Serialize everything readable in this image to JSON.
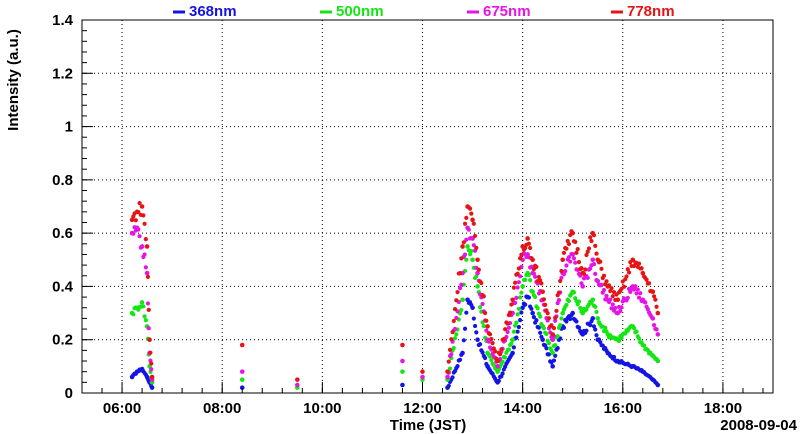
{
  "chart_data": {
    "type": "scatter",
    "title": "",
    "xlabel": "Time (JST)",
    "ylabel": "Intensity (a.u.)",
    "date_label": "2008-09-04",
    "x_unit": "hours (JST)",
    "xlim": [
      5.2,
      19.0
    ],
    "ylim": [
      0,
      1.4
    ],
    "x_ticks": [
      6,
      8,
      10,
      12,
      14,
      16,
      18
    ],
    "x_tick_labels": [
      "06:00",
      "08:00",
      "10:00",
      "12:00",
      "14:00",
      "16:00",
      "18:00"
    ],
    "y_ticks": [
      0,
      0.2,
      0.4,
      0.6,
      0.8,
      1,
      1.2,
      1.4
    ],
    "y_tick_labels": [
      "0",
      "0.2",
      "0.4",
      "0.6",
      "0.8",
      "1",
      "1.2",
      "1.4"
    ],
    "grid": true,
    "legend_position": "top",
    "series": [
      {
        "name": "368nm",
        "color": "#1414e6",
        "points": [
          [
            6.2,
            0.06
          ],
          [
            6.3,
            0.08
          ],
          [
            6.4,
            0.09
          ],
          [
            6.5,
            0.06
          ],
          [
            6.55,
            0.04
          ],
          [
            6.6,
            0.02
          ],
          [
            8.4,
            0.02
          ],
          [
            11.6,
            0.03
          ],
          [
            12.5,
            0.02
          ],
          [
            12.8,
            0.15
          ],
          [
            12.9,
            0.35
          ],
          [
            13.0,
            0.32
          ],
          [
            13.1,
            0.2
          ],
          [
            13.3,
            0.1
          ],
          [
            13.5,
            0.04
          ],
          [
            13.8,
            0.15
          ],
          [
            14.0,
            0.32
          ],
          [
            14.1,
            0.36
          ],
          [
            14.2,
            0.3
          ],
          [
            14.4,
            0.2
          ],
          [
            14.6,
            0.1
          ],
          [
            14.8,
            0.25
          ],
          [
            15.0,
            0.3
          ],
          [
            15.2,
            0.22
          ],
          [
            15.4,
            0.28
          ],
          [
            15.5,
            0.2
          ],
          [
            15.7,
            0.15
          ],
          [
            15.9,
            0.12
          ],
          [
            16.2,
            0.1
          ],
          [
            16.4,
            0.08
          ],
          [
            16.6,
            0.05
          ],
          [
            16.7,
            0.03
          ]
        ]
      },
      {
        "name": "500nm",
        "color": "#14e614",
        "points": [
          [
            6.2,
            0.3
          ],
          [
            6.3,
            0.32
          ],
          [
            6.4,
            0.34
          ],
          [
            6.5,
            0.25
          ],
          [
            6.55,
            0.1
          ],
          [
            6.6,
            0.04
          ],
          [
            8.4,
            0.05
          ],
          [
            9.5,
            0.02
          ],
          [
            11.6,
            0.08
          ],
          [
            12.0,
            0.05
          ],
          [
            12.5,
            0.05
          ],
          [
            12.8,
            0.35
          ],
          [
            12.9,
            0.55
          ],
          [
            13.0,
            0.5
          ],
          [
            13.1,
            0.4
          ],
          [
            13.3,
            0.15
          ],
          [
            13.5,
            0.08
          ],
          [
            13.8,
            0.2
          ],
          [
            14.0,
            0.4
          ],
          [
            14.1,
            0.45
          ],
          [
            14.2,
            0.38
          ],
          [
            14.4,
            0.25
          ],
          [
            14.6,
            0.15
          ],
          [
            14.8,
            0.3
          ],
          [
            15.0,
            0.38
          ],
          [
            15.2,
            0.3
          ],
          [
            15.4,
            0.35
          ],
          [
            15.5,
            0.28
          ],
          [
            15.7,
            0.22
          ],
          [
            15.9,
            0.2
          ],
          [
            16.2,
            0.25
          ],
          [
            16.4,
            0.18
          ],
          [
            16.6,
            0.14
          ],
          [
            16.7,
            0.12
          ]
        ]
      },
      {
        "name": "675nm",
        "color": "#e614e6",
        "points": [
          [
            6.2,
            0.6
          ],
          [
            6.3,
            0.62
          ],
          [
            6.4,
            0.55
          ],
          [
            6.5,
            0.45
          ],
          [
            6.55,
            0.15
          ],
          [
            6.6,
            0.05
          ],
          [
            8.4,
            0.08
          ],
          [
            9.5,
            0.03
          ],
          [
            11.6,
            0.12
          ],
          [
            12.0,
            0.06
          ],
          [
            12.5,
            0.06
          ],
          [
            12.8,
            0.45
          ],
          [
            12.9,
            0.62
          ],
          [
            13.0,
            0.58
          ],
          [
            13.1,
            0.45
          ],
          [
            13.3,
            0.2
          ],
          [
            13.5,
            0.1
          ],
          [
            13.8,
            0.3
          ],
          [
            14.0,
            0.5
          ],
          [
            14.1,
            0.52
          ],
          [
            14.2,
            0.45
          ],
          [
            14.4,
            0.35
          ],
          [
            14.6,
            0.2
          ],
          [
            14.8,
            0.45
          ],
          [
            15.0,
            0.52
          ],
          [
            15.2,
            0.4
          ],
          [
            15.4,
            0.5
          ],
          [
            15.5,
            0.42
          ],
          [
            15.7,
            0.35
          ],
          [
            15.9,
            0.3
          ],
          [
            16.2,
            0.4
          ],
          [
            16.4,
            0.35
          ],
          [
            16.6,
            0.28
          ],
          [
            16.7,
            0.22
          ]
        ]
      },
      {
        "name": "778nm",
        "color": "#e61414",
        "points": [
          [
            6.2,
            0.65
          ],
          [
            6.3,
            0.68
          ],
          [
            6.4,
            0.7
          ],
          [
            6.5,
            0.55
          ],
          [
            6.55,
            0.2
          ],
          [
            6.6,
            0.06
          ],
          [
            8.4,
            0.18
          ],
          [
            9.5,
            0.05
          ],
          [
            11.6,
            0.18
          ],
          [
            12.0,
            0.08
          ],
          [
            12.5,
            0.08
          ],
          [
            12.8,
            0.55
          ],
          [
            12.9,
            0.7
          ],
          [
            13.0,
            0.65
          ],
          [
            13.1,
            0.5
          ],
          [
            13.3,
            0.25
          ],
          [
            13.5,
            0.12
          ],
          [
            13.8,
            0.35
          ],
          [
            14.0,
            0.55
          ],
          [
            14.1,
            0.58
          ],
          [
            14.2,
            0.5
          ],
          [
            14.4,
            0.38
          ],
          [
            14.6,
            0.22
          ],
          [
            14.8,
            0.5
          ],
          [
            15.0,
            0.6
          ],
          [
            15.2,
            0.45
          ],
          [
            15.4,
            0.6
          ],
          [
            15.5,
            0.5
          ],
          [
            15.7,
            0.4
          ],
          [
            15.9,
            0.35
          ],
          [
            16.2,
            0.5
          ],
          [
            16.4,
            0.45
          ],
          [
            16.6,
            0.38
          ],
          [
            16.7,
            0.3
          ]
        ]
      }
    ]
  }
}
